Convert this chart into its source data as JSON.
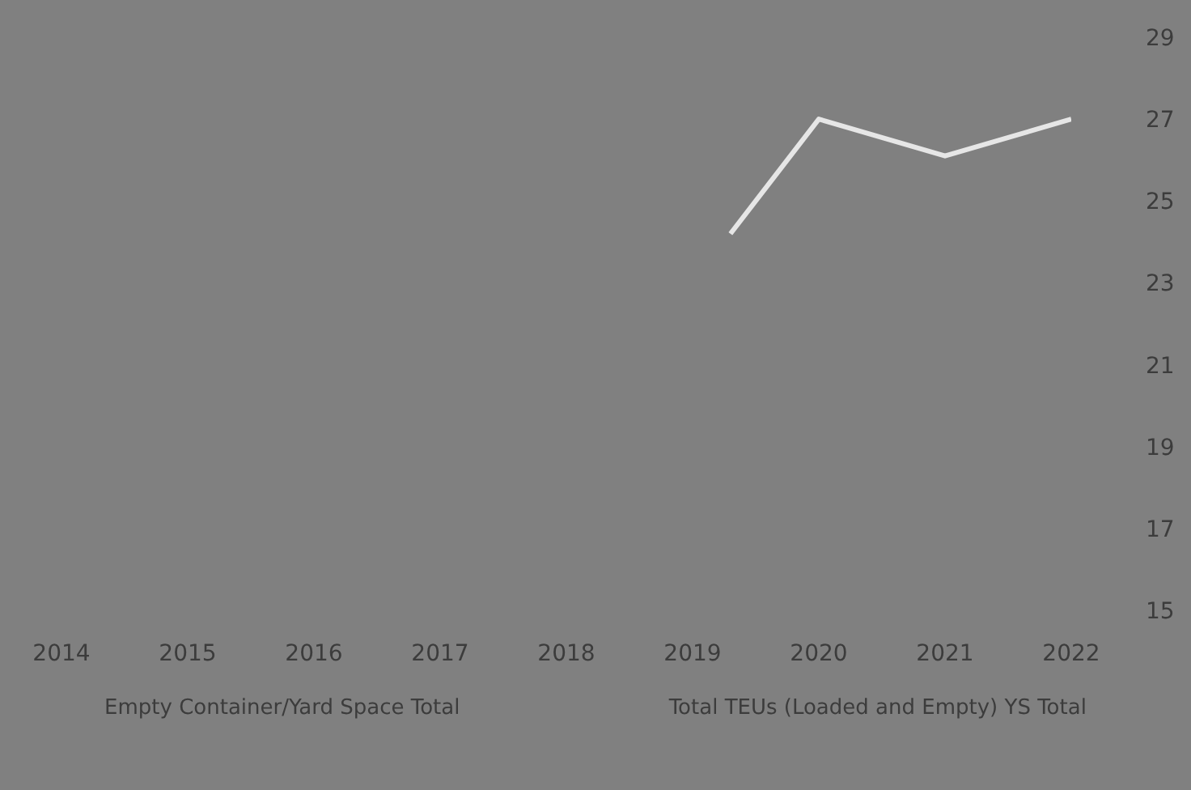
{
  "chart_data": {
    "type": "line",
    "x": [
      2019.3,
      2020,
      2021,
      2022
    ],
    "series": [
      {
        "color": "#e6e6e6",
        "values": [
          24.2,
          27.0,
          26.1,
          27.0
        ]
      }
    ],
    "xlim": [
      2014,
      2022
    ],
    "xticks": [
      2014,
      2015,
      2016,
      2017,
      2018,
      2019,
      2020,
      2021,
      2022
    ],
    "ylim": [
      15,
      29
    ],
    "yticks": [
      15,
      17,
      19,
      21,
      23,
      25,
      27,
      29
    ],
    "grid": false,
    "marker": "none",
    "line_style": "solid",
    "annotations": [
      "Empty Container/Yard Space Total",
      "Total TEUs (Loaded and Empty) YS Total"
    ]
  }
}
